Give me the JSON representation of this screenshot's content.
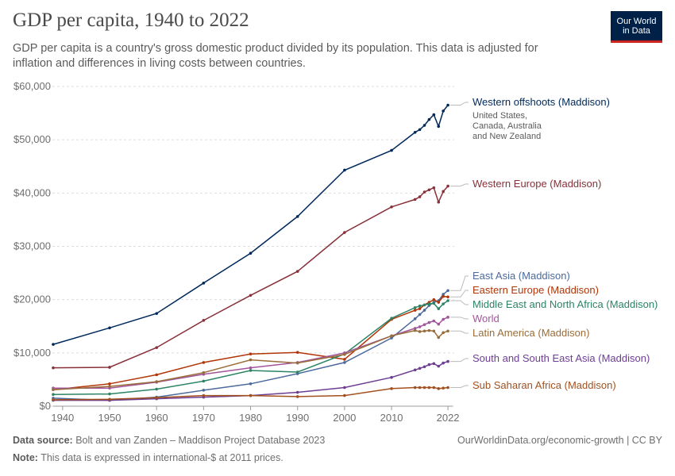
{
  "header": {
    "title": "GDP per capita, 1940 to 2022",
    "subtitle": "GDP per capita is a country's gross domestic product divided by its population. This data is adjusted for inflation and differences in living costs between countries.",
    "logo": "Our World in Data"
  },
  "footer": {
    "source_label": "Data source:",
    "source_text": "Bolt and van Zanden – Maddison Project Database 2023",
    "note_label": "Note:",
    "note_text": "This data is expressed in international-$ at 2011 prices.",
    "link": "OurWorldinData.org/economic-growth | CC BY"
  },
  "chart_data": {
    "type": "line",
    "title": "GDP per capita, 1940 to 2022",
    "ylim": [
      0,
      60000
    ],
    "xlim": [
      1938,
      2023
    ],
    "x_ticks": [
      1940,
      1950,
      1960,
      1970,
      1980,
      1990,
      2000,
      2010,
      2022
    ],
    "x_tick_labels": [
      "1940",
      "1950",
      "1960",
      "1970",
      "1980",
      "1990",
      "2000",
      "2010",
      "2022"
    ],
    "y_ticks": [
      0,
      10000,
      20000,
      30000,
      40000,
      50000,
      60000
    ],
    "y_tick_labels": [
      "$0",
      "$10,000",
      "$20,000",
      "$30,000",
      "$40,000",
      "$50,000",
      "$60,000"
    ],
    "grid": "horizontal",
    "legend": "right, inline labels",
    "series": [
      {
        "name": "Western offshoots (Maddison)",
        "note": "United States, Canada, Australia and New Zealand",
        "color": "#00295b",
        "x": [
          1938,
          1950,
          1960,
          1970,
          1980,
          1990,
          2000,
          2010,
          2015,
          2016,
          2017,
          2018,
          2019,
          2020,
          2021,
          2022
        ],
        "y": [
          11600,
          14700,
          17400,
          23100,
          28700,
          35600,
          44300,
          48000,
          51400,
          51900,
          52700,
          53800,
          54700,
          52500,
          55400,
          56500
        ]
      },
      {
        "name": "Western Europe (Maddison)",
        "color": "#883039",
        "x": [
          1938,
          1950,
          1960,
          1970,
          1980,
          1990,
          2000,
          2010,
          2015,
          2016,
          2017,
          2018,
          2019,
          2020,
          2021,
          2022
        ],
        "y": [
          7200,
          7300,
          11000,
          16100,
          20800,
          25300,
          32600,
          37400,
          38800,
          39300,
          40200,
          40600,
          41000,
          38300,
          40300,
          41300
        ]
      },
      {
        "name": "East Asia (Maddison)",
        "color": "#4c6a9c",
        "x": [
          1938,
          1950,
          1960,
          1970,
          1980,
          1990,
          2000,
          2010,
          2015,
          2016,
          2017,
          2018,
          2019,
          2020,
          2021,
          2022
        ],
        "y": [
          1500,
          1100,
          1700,
          3000,
          4200,
          6100,
          8200,
          12800,
          16400,
          17200,
          18000,
          18900,
          19500,
          19800,
          21000,
          21700
        ]
      },
      {
        "name": "Eastern Europe (Maddison)",
        "color": "#b13507",
        "x": [
          1938,
          1950,
          1960,
          1970,
          1980,
          1990,
          2000,
          2010,
          2015,
          2016,
          2017,
          2018,
          2019,
          2020,
          2021,
          2022
        ],
        "y": [
          3100,
          4200,
          5900,
          8200,
          9800,
          10100,
          8800,
          16300,
          18000,
          18300,
          19000,
          19500,
          20000,
          19500,
          20600,
          20500
        ]
      },
      {
        "name": "Middle East and North Africa (Maddison)",
        "color": "#2c8465",
        "x": [
          1938,
          1950,
          1960,
          1970,
          1980,
          1990,
          2000,
          2010,
          2015,
          2016,
          2017,
          2018,
          2019,
          2020,
          2021,
          2022
        ],
        "y": [
          2200,
          2300,
          3200,
          4700,
          6700,
          6400,
          9800,
          16500,
          18500,
          18800,
          19000,
          19200,
          19300,
          18300,
          19200,
          19800
        ]
      },
      {
        "name": "World",
        "color": "#a2559c",
        "x": [
          1938,
          1950,
          1960,
          1970,
          1980,
          1990,
          2000,
          2010,
          2015,
          2016,
          2017,
          2018,
          2019,
          2020,
          2021,
          2022
        ],
        "y": [
          3400,
          3400,
          4500,
          6000,
          7200,
          8200,
          10000,
          13200,
          14600,
          14900,
          15300,
          15700,
          16000,
          15400,
          16300,
          16700
        ]
      },
      {
        "name": "Latin America (Maddison)",
        "color": "#996d39",
        "x": [
          1938,
          1950,
          1960,
          1970,
          1980,
          1990,
          2000,
          2010,
          2015,
          2016,
          2017,
          2018,
          2019,
          2020,
          2021,
          2022
        ],
        "y": [
          3100,
          3700,
          4600,
          6300,
          8700,
          8100,
          9700,
          13200,
          14200,
          14000,
          14100,
          14200,
          14100,
          12900,
          13800,
          14100
        ]
      },
      {
        "name": "South and South East Asia (Maddison)",
        "color": "#6d3e91",
        "x": [
          1938,
          1950,
          1960,
          1970,
          1980,
          1990,
          2000,
          2010,
          2015,
          2016,
          2017,
          2018,
          2019,
          2020,
          2021,
          2022
        ],
        "y": [
          1100,
          1100,
          1400,
          1700,
          2000,
          2600,
          3500,
          5400,
          6800,
          7100,
          7400,
          7800,
          8000,
          7500,
          8100,
          8400
        ]
      },
      {
        "name": "Sub Saharan Africa (Maddison)",
        "color": "#a2511e",
        "x": [
          1938,
          1950,
          1960,
          1970,
          1980,
          1990,
          2000,
          2010,
          2015,
          2016,
          2017,
          2018,
          2019,
          2020,
          2021,
          2022
        ],
        "y": [
          1200,
          1300,
          1600,
          2000,
          2000,
          1800,
          2000,
          3300,
          3500,
          3500,
          3500,
          3500,
          3500,
          3300,
          3400,
          3500
        ]
      }
    ]
  }
}
